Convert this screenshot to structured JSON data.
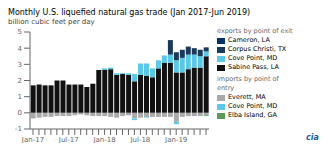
{
  "chart_data": {
    "type": "bar",
    "title": "Monthly U.S. liquefied natural gas trade (Jan 2017-Jun 2019)",
    "ylabel": "billion cubic feet per day",
    "categories": [
      "Jan-17",
      null,
      null,
      null,
      null,
      null,
      "Jul-17",
      null,
      null,
      null,
      null,
      null,
      "Jan-18",
      null,
      null,
      null,
      null,
      null,
      "Jul-18",
      null,
      null,
      null,
      null,
      null,
      "Jan-19",
      null,
      null,
      null,
      null,
      null
    ],
    "series": [
      {
        "name": "Sabine Pass, LA",
        "color": "#111111",
        "values": [
          1.7,
          1.75,
          1.7,
          1.7,
          2.0,
          2.0,
          1.75,
          1.75,
          1.75,
          1.6,
          1.8,
          2.65,
          2.65,
          2.7,
          2.35,
          2.4,
          2.35,
          1.95,
          2.35,
          2.3,
          2.2,
          2.75,
          3.1,
          3.1,
          2.5,
          2.5,
          2.7,
          2.8,
          2.8,
          3.5
        ]
      },
      {
        "name": "Cove Point, MD",
        "color": "#5bc8e8",
        "values": [
          0.0,
          0.0,
          0.0,
          0.0,
          0.0,
          0.0,
          0.0,
          0.0,
          0.0,
          0.0,
          0.0,
          0.0,
          0.1,
          0.1,
          0.1,
          0.05,
          0.1,
          0.45,
          0.7,
          0.75,
          0.55,
          0.5,
          0.45,
          0.5,
          0.75,
          0.9,
          0.9,
          0.8,
          0.7,
          0.3
        ]
      },
      {
        "name": "Corpus Christi, TX",
        "color": "#1a3a5c",
        "values": [
          0.0,
          0.0,
          0.0,
          0.0,
          0.0,
          0.0,
          0.0,
          0.0,
          0.0,
          0.0,
          0.0,
          0.0,
          0.0,
          0.0,
          0.0,
          0.0,
          0.0,
          0.0,
          0.0,
          0.0,
          0.0,
          0.0,
          0.0,
          0.9,
          0.5,
          0.5,
          0.5,
          0.4,
          0.4,
          0.25
        ]
      },
      {
        "name": "Cameron, LA",
        "color": "#003366",
        "values": [
          0.0,
          0.0,
          0.0,
          0.0,
          0.0,
          0.0,
          0.0,
          0.0,
          0.0,
          0.0,
          0.0,
          0.0,
          0.0,
          0.0,
          0.0,
          0.0,
          0.0,
          0.0,
          0.0,
          0.0,
          0.0,
          0.0,
          0.0,
          0.0,
          0.0,
          0.0,
          0.0,
          0.0,
          0.0,
          0.0
        ]
      },
      {
        "name": "Everett, MA",
        "color": "#aaaaaa",
        "values": [
          -0.35,
          -0.3,
          -0.25,
          -0.25,
          -0.2,
          -0.2,
          -0.2,
          -0.15,
          -0.1,
          -0.15,
          -0.2,
          -0.2,
          -0.2,
          -0.25,
          -0.3,
          -0.2,
          -0.15,
          -0.35,
          -0.3,
          -0.25,
          -0.25,
          -0.25,
          -0.25,
          -0.25,
          -0.55,
          -0.25,
          -0.2,
          -0.2,
          -0.2,
          -0.15
        ]
      },
      {
        "name": "Cove Point, MD",
        "color": "#5bc8e8",
        "values": [
          0.0,
          0.0,
          0.0,
          0.0,
          0.0,
          0.0,
          0.0,
          0.0,
          0.0,
          0.0,
          0.0,
          0.0,
          0.0,
          0.0,
          0.0,
          0.0,
          0.0,
          -0.1,
          0.0,
          -0.05,
          0.0,
          0.0,
          0.0,
          0.0,
          -0.15,
          0.0,
          0.0,
          0.0,
          0.0,
          0.0
        ]
      },
      {
        "name": "Elba Island, GA",
        "color": "#5a9a5a",
        "values": [
          0.0,
          0.0,
          0.0,
          0.0,
          0.0,
          0.0,
          0.0,
          0.0,
          0.0,
          0.0,
          0.0,
          0.0,
          0.0,
          0.0,
          0.0,
          0.0,
          0.0,
          0.0,
          0.0,
          0.0,
          0.0,
          0.0,
          0.0,
          0.0,
          0.0,
          0.0,
          0.0,
          0.0,
          0.0,
          -0.05
        ]
      }
    ],
    "stacked": true,
    "ylim": [
      -1,
      5
    ],
    "yticks": [
      -1,
      0,
      1,
      2,
      3,
      4,
      5
    ],
    "grid": false,
    "legend": "right",
    "annotations": [
      "exports by point of exit",
      "imports by point of\nentry",
      "cia"
    ]
  }
}
